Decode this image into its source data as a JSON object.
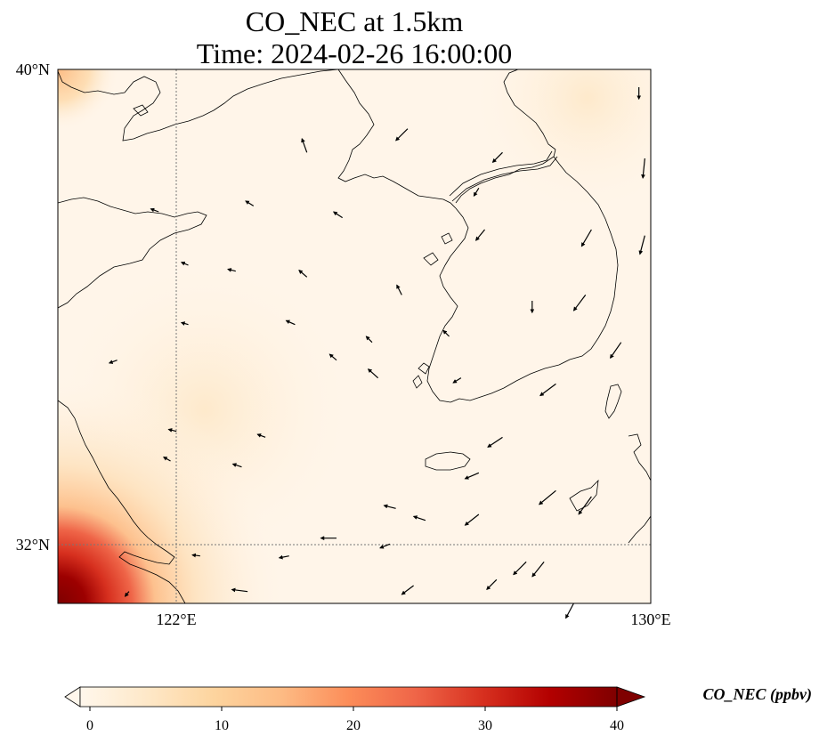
{
  "title": {
    "line1": "CO_NEC at 1.5km",
    "line2": "Time: 2024-02-26 16:00:00"
  },
  "map": {
    "lat_labels": [
      "40°N",
      "32°N"
    ],
    "lon_labels": [
      "122°E",
      "130°E"
    ],
    "extent": {
      "lon_min": 120,
      "lon_max": 130,
      "lat_min": 31,
      "lat_max": 40
    },
    "gridlines": {
      "lons": [
        122
      ],
      "lats": [
        32
      ],
      "style": "dotted"
    }
  },
  "colorbar": {
    "label": "CO_NEC (ppbv)",
    "ticks": [
      "0",
      "10",
      "20",
      "30",
      "40"
    ],
    "min": 0,
    "max": 40,
    "colormap": "OrRd",
    "colors": [
      "#fff7ec",
      "#fee8c8",
      "#fdd49e",
      "#fdbb84",
      "#fc8d59",
      "#ef6548",
      "#d7301f",
      "#b30000",
      "#7f0000"
    ]
  },
  "chart_data": {
    "type": "heatmap",
    "title": "CO_NEC at 1.5km / Time: 2024-02-26 16:00:00",
    "variable": "CO_NEC (ppbv)",
    "value_range": [
      0,
      40
    ],
    "highlights": [
      {
        "region": "southwest corner (Shanghai/Yangtze outflow)",
        "value_ppbv": 40
      },
      {
        "region": "northwest corner",
        "value_ppbv": 12
      },
      {
        "region": "background ocean",
        "value_ppbv": 3
      }
    ],
    "wind_vectors": [
      {
        "lon": 129.8,
        "lat": 39.7,
        "u": 0.0,
        "v": -1.2
      },
      {
        "lon": 125.9,
        "lat": 39.0,
        "u": -1.2,
        "v": -1.2
      },
      {
        "lon": 124.2,
        "lat": 38.6,
        "u": -0.5,
        "v": 1.4
      },
      {
        "lon": 127.5,
        "lat": 38.6,
        "u": -1.0,
        "v": -1.0
      },
      {
        "lon": 127.1,
        "lat": 38.0,
        "u": -0.5,
        "v": -0.8
      },
      {
        "lon": 129.9,
        "lat": 38.5,
        "u": -0.2,
        "v": -2.0
      },
      {
        "lon": 123.3,
        "lat": 37.7,
        "u": -0.8,
        "v": 0.5
      },
      {
        "lon": 121.7,
        "lat": 37.6,
        "u": -0.8,
        "v": 0.3
      },
      {
        "lon": 124.8,
        "lat": 37.5,
        "u": -0.9,
        "v": 0.6
      },
      {
        "lon": 127.2,
        "lat": 37.3,
        "u": -0.9,
        "v": -1.1
      },
      {
        "lon": 129.0,
        "lat": 37.3,
        "u": -1.0,
        "v": -1.7
      },
      {
        "lon": 129.9,
        "lat": 37.2,
        "u": -0.5,
        "v": -1.9
      },
      {
        "lon": 122.2,
        "lat": 36.7,
        "u": -0.7,
        "v": 0.3
      },
      {
        "lon": 123.0,
        "lat": 36.6,
        "u": -0.8,
        "v": 0.2
      },
      {
        "lon": 124.2,
        "lat": 36.5,
        "u": -0.8,
        "v": 0.7
      },
      {
        "lon": 125.8,
        "lat": 36.2,
        "u": -0.5,
        "v": 1.0
      },
      {
        "lon": 128.0,
        "lat": 36.1,
        "u": 0.0,
        "v": -1.2
      },
      {
        "lon": 128.9,
        "lat": 36.2,
        "u": -1.2,
        "v": -1.6
      },
      {
        "lon": 122.2,
        "lat": 35.7,
        "u": -0.7,
        "v": 0.2
      },
      {
        "lon": 124.0,
        "lat": 35.7,
        "u": -0.9,
        "v": 0.4
      },
      {
        "lon": 125.3,
        "lat": 35.4,
        "u": -0.6,
        "v": 0.6
      },
      {
        "lon": 126.6,
        "lat": 35.5,
        "u": -0.6,
        "v": 0.6
      },
      {
        "lon": 129.5,
        "lat": 35.4,
        "u": -1.1,
        "v": -1.6
      },
      {
        "lon": 121.0,
        "lat": 35.1,
        "u": -0.8,
        "v": -0.3
      },
      {
        "lon": 124.7,
        "lat": 35.1,
        "u": -0.7,
        "v": 0.6
      },
      {
        "lon": 125.4,
        "lat": 34.8,
        "u": -1.0,
        "v": 0.9
      },
      {
        "lon": 126.8,
        "lat": 34.8,
        "u": -0.8,
        "v": -0.5
      },
      {
        "lon": 128.4,
        "lat": 34.7,
        "u": -1.6,
        "v": -1.2
      },
      {
        "lon": 122.0,
        "lat": 33.9,
        "u": -0.8,
        "v": 0.2
      },
      {
        "lon": 123.5,
        "lat": 33.8,
        "u": -0.8,
        "v": 0.3
      },
      {
        "lon": 127.5,
        "lat": 33.8,
        "u": -1.5,
        "v": -1.0
      },
      {
        "lon": 121.9,
        "lat": 33.4,
        "u": -0.7,
        "v": 0.4
      },
      {
        "lon": 123.1,
        "lat": 33.3,
        "u": -0.9,
        "v": 0.3
      },
      {
        "lon": 127.1,
        "lat": 33.2,
        "u": -1.4,
        "v": -0.6
      },
      {
        "lon": 128.4,
        "lat": 32.9,
        "u": -1.7,
        "v": -1.4
      },
      {
        "lon": 129.0,
        "lat": 32.8,
        "u": -1.3,
        "v": -1.8
      },
      {
        "lon": 125.7,
        "lat": 32.6,
        "u": -1.2,
        "v": 0.3
      },
      {
        "lon": 126.2,
        "lat": 32.4,
        "u": -1.2,
        "v": 0.4
      },
      {
        "lon": 127.1,
        "lat": 32.5,
        "u": -1.4,
        "v": -1.1
      },
      {
        "lon": 124.7,
        "lat": 32.1,
        "u": -1.6,
        "v": 0.0
      },
      {
        "lon": 125.6,
        "lat": 32.0,
        "u": -1.0,
        "v": -0.4
      },
      {
        "lon": 123.9,
        "lat": 31.8,
        "u": -1.0,
        "v": -0.2
      },
      {
        "lon": 127.9,
        "lat": 31.7,
        "u": -1.3,
        "v": -1.3
      },
      {
        "lon": 128.2,
        "lat": 31.7,
        "u": -1.2,
        "v": -1.5
      },
      {
        "lon": 122.4,
        "lat": 31.8,
        "u": -0.8,
        "v": 0.1
      },
      {
        "lon": 127.4,
        "lat": 31.4,
        "u": -1.0,
        "v": -1.0
      },
      {
        "lon": 126.0,
        "lat": 31.3,
        "u": -1.2,
        "v": -0.9
      },
      {
        "lon": 123.2,
        "lat": 31.2,
        "u": -1.6,
        "v": 0.2
      },
      {
        "lon": 128.7,
        "lat": 31.0,
        "u": -0.8,
        "v": -1.5
      },
      {
        "lon": 121.2,
        "lat": 31.2,
        "u": -0.4,
        "v": -0.5
      }
    ]
  }
}
